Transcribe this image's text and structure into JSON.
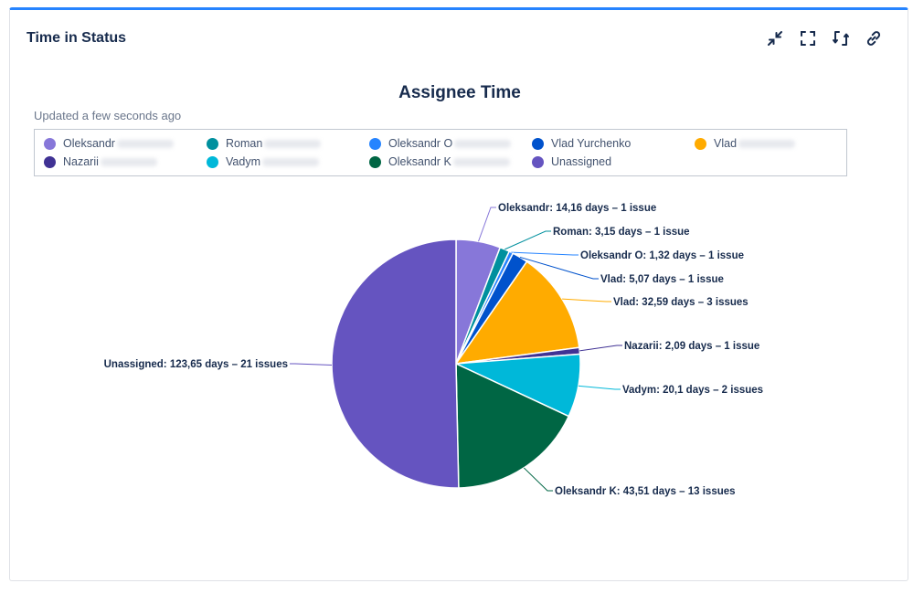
{
  "panel": {
    "title": "Time in Status",
    "tools": [
      {
        "name": "minimize-icon"
      },
      {
        "name": "fullscreen-icon"
      },
      {
        "name": "refresh-icon"
      },
      {
        "name": "link-icon"
      }
    ]
  },
  "chart_data": {
    "type": "pie",
    "title": "Assignee Time",
    "subtitle": "Updated a few seconds ago",
    "legend_position": "top",
    "slices": [
      {
        "legend": "Oleksandr",
        "name": "Oleksandr",
        "value": 14.16,
        "label_value": "14,16 days – 1 issue",
        "color": "#8777d9"
      },
      {
        "legend": "Roman",
        "name": "Roman",
        "value": 3.15,
        "label_value": "3,15 days – 1 issue",
        "color": "#00909e"
      },
      {
        "legend": "Oleksandr O",
        "name": "Oleksandr O",
        "value": 1.32,
        "label_value": "1,32 days – 1 issue",
        "color": "#2684ff"
      },
      {
        "legend": "Vlad Yurchenko",
        "name": "Vlad",
        "value": 5.07,
        "label_value": "5,07 days – 1 issue",
        "color": "#0052cc"
      },
      {
        "legend": "Vlad",
        "name": "Vlad",
        "value": 32.59,
        "label_value": "32,59 days – 3 issues",
        "color": "#ffab00"
      },
      {
        "legend": "Nazarii",
        "name": "Nazarii",
        "value": 2.09,
        "label_value": "2,09 days – 1 issue",
        "color": "#403294"
      },
      {
        "legend": "Vadym",
        "name": "Vadym",
        "value": 20.1,
        "label_value": "20,1 days – 2 issues",
        "color": "#00b8d9"
      },
      {
        "legend": "Oleksandr K",
        "name": "Oleksandr K",
        "value": 43.51,
        "label_value": "43,51 days – 13 issues",
        "color": "#006644"
      },
      {
        "legend": "Unassigned",
        "name": "Unassigned",
        "value": 123.65,
        "label_value": "123,65 days – 21 issues",
        "color": "#6554c0"
      }
    ]
  }
}
